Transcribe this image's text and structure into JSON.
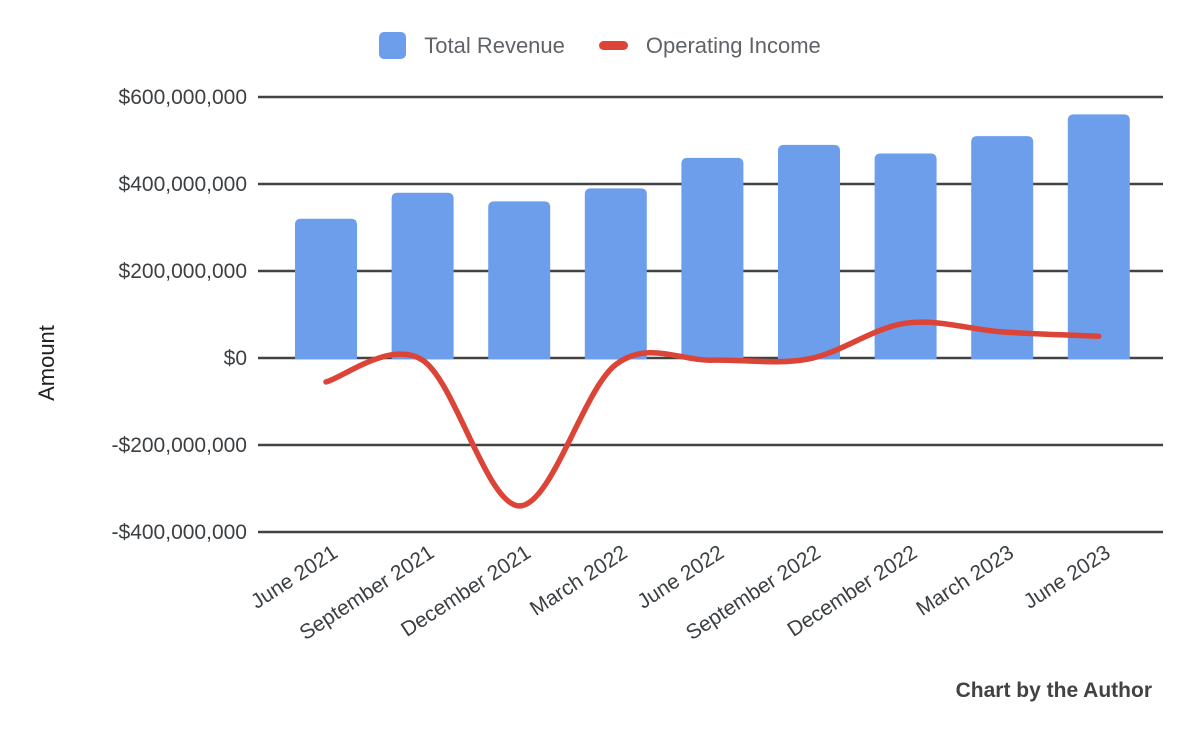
{
  "page": {
    "background": "#ffffff"
  },
  "legend": {
    "items": [
      {
        "label": "Total Revenue",
        "color": "#6d9eeb",
        "marker": "square"
      },
      {
        "label": "Operating Income",
        "color": "#db4437",
        "marker": "dash"
      }
    ]
  },
  "caption": "Chart by the Author",
  "colors": {
    "grid": "#424242",
    "axis_text": "#3c4043",
    "legend_text": "#5f6368",
    "caption_text": "#424242",
    "bar": "#6d9eeb",
    "line": "#db4437"
  },
  "chart_data": {
    "type": "combo",
    "title": "",
    "categories": [
      "June 2021",
      "September 2021",
      "December 2021",
      "March 2022",
      "June 2022",
      "September 2022",
      "December 2022",
      "March 2023",
      "June 2023"
    ],
    "series": [
      {
        "name": "Total Revenue",
        "type": "bar",
        "color": "#6d9eeb",
        "values": [
          320000000,
          380000000,
          360000000,
          390000000,
          460000000,
          490000000,
          470000000,
          510000000,
          560000000
        ]
      },
      {
        "name": "Operating Income",
        "type": "line",
        "color": "#db4437",
        "values": [
          -55000000,
          -5000000,
          -340000000,
          -15000000,
          -5000000,
          -2000000,
          80000000,
          60000000,
          50000000
        ]
      }
    ],
    "xlabel": "",
    "ylabel": "Amount",
    "ylim": [
      -400000000,
      600000000
    ],
    "yticks": [
      {
        "value": 600000000,
        "label": "$600,000,000"
      },
      {
        "value": 400000000,
        "label": "$400,000,000"
      },
      {
        "value": 200000000,
        "label": "$200,000,000"
      },
      {
        "value": 0,
        "label": "$0"
      },
      {
        "value": -200000000,
        "label": "-$200,000,000"
      },
      {
        "value": -400000000,
        "label": "-$400,000,000"
      }
    ],
    "grid": true,
    "legend_position": "top",
    "x_tick_rotation_deg": 33
  }
}
